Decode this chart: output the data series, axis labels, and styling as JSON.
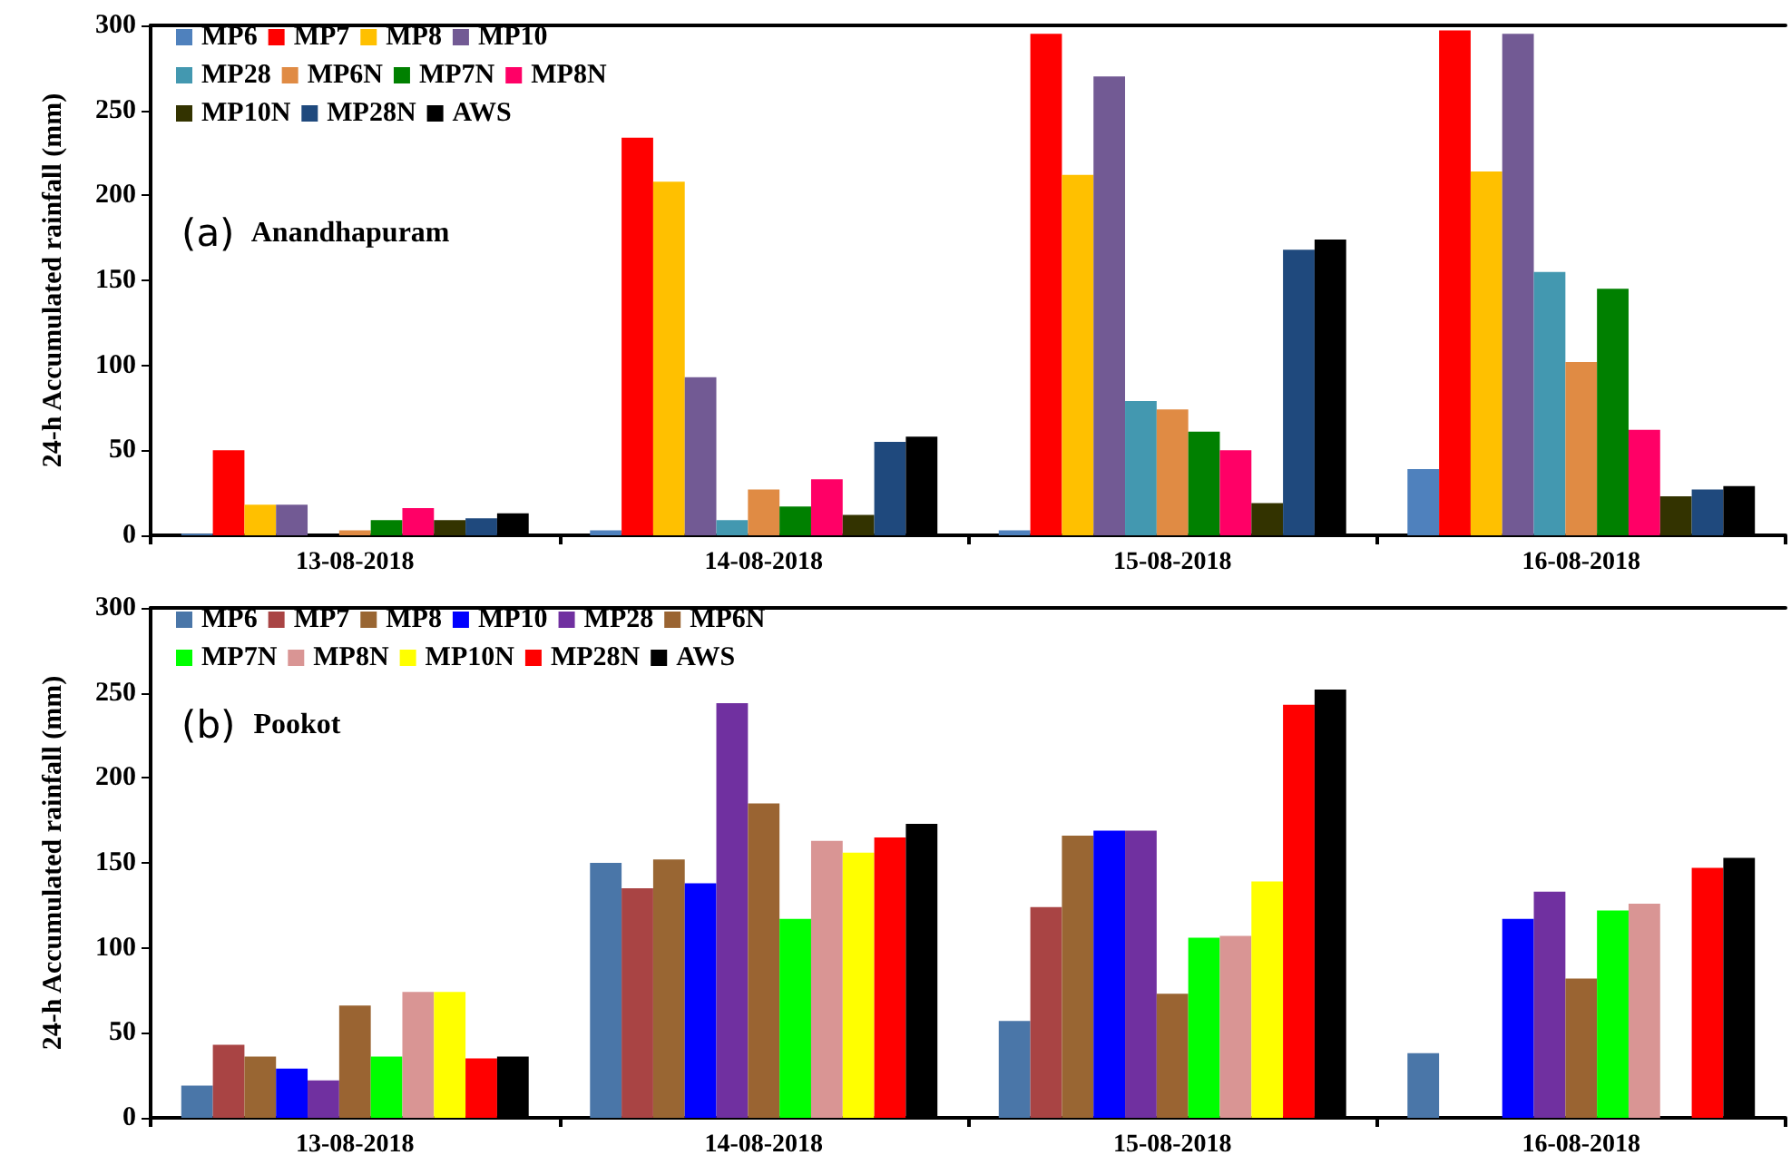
{
  "chart_data": [
    {
      "type": "bar",
      "categories": [
        "13-08-2018",
        "14-08-2018",
        "15-08-2018",
        "16-08-2018"
      ],
      "ylabel": "24-h Accumulated rainfall (mm)",
      "annotations": [
        "(a) Anandhapuram"
      ],
      "ylim": [
        0,
        300
      ],
      "yticks": [
        0,
        50,
        100,
        150,
        200,
        250,
        300
      ],
      "grid": false,
      "legend": "top left",
      "series": [
        {
          "name": "MP6",
          "color": "#4f81bd",
          "values": [
            1,
            3,
            3,
            39
          ]
        },
        {
          "name": "MP7",
          "color": "#ff0000",
          "values": [
            50,
            234,
            295,
            297
          ]
        },
        {
          "name": "MP8",
          "color": "#ffc000",
          "values": [
            18,
            208,
            212,
            214
          ]
        },
        {
          "name": "MP10",
          "color": "#725a94",
          "values": [
            18,
            93,
            270,
            295
          ]
        },
        {
          "name": "MP28",
          "color": "#4398b0",
          "values": [
            0,
            9,
            79,
            155
          ]
        },
        {
          "name": "MP6N",
          "color": "#e08b44",
          "values": [
            3,
            27,
            74,
            102
          ]
        },
        {
          "name": "MP7N",
          "color": "#008000",
          "values": [
            9,
            17,
            61,
            145
          ]
        },
        {
          "name": "MP8N",
          "color": "#ff0066",
          "values": [
            16,
            33,
            50,
            62
          ]
        },
        {
          "name": "MP10N",
          "color": "#333300",
          "values": [
            9,
            12,
            19,
            23
          ]
        },
        {
          "name": "MP28N",
          "color": "#1f497d",
          "values": [
            10,
            55,
            168,
            27
          ]
        },
        {
          "name": "AWS",
          "color": "#000000",
          "values": [
            13,
            58,
            174,
            29
          ]
        }
      ]
    },
    {
      "type": "bar",
      "categories": [
        "13-08-2018",
        "14-08-2018",
        "15-08-2018",
        "16-08-2018"
      ],
      "ylabel": "24-h Accumulated rainfall (mm)",
      "annotations": [
        "(b) Pookot"
      ],
      "ylim": [
        0,
        300
      ],
      "yticks": [
        0,
        50,
        100,
        150,
        200,
        250,
        300
      ],
      "grid": false,
      "legend": "top left",
      "series": [
        {
          "name": "MP6",
          "color": "#4a76a8",
          "values": [
            19,
            150,
            57,
            38
          ]
        },
        {
          "name": "MP7",
          "color": "#a94444",
          "values": [
            43,
            135,
            124,
            null
          ]
        },
        {
          "name": "MP8",
          "color": "#996633",
          "values": [
            36,
            152,
            166,
            null
          ]
        },
        {
          "name": "MP10",
          "color": "#0000ff",
          "values": [
            29,
            138,
            169,
            117
          ]
        },
        {
          "name": "MP28",
          "color": "#7030a0",
          "values": [
            22,
            244,
            169,
            133
          ]
        },
        {
          "name": "MP6N",
          "color": "#9a6432",
          "values": [
            66,
            185,
            73,
            82
          ]
        },
        {
          "name": "MP7N",
          "color": "#00ff00",
          "values": [
            36,
            117,
            106,
            122
          ]
        },
        {
          "name": "MP8N",
          "color": "#d99594",
          "values": [
            74,
            163,
            107,
            126
          ]
        },
        {
          "name": "MP10N",
          "color": "#ffff00",
          "values": [
            74,
            156,
            139,
            null
          ]
        },
        {
          "name": "MP28N",
          "color": "#ff0000",
          "values": [
            35,
            165,
            243,
            147
          ]
        },
        {
          "name": "AWS",
          "color": "#000000",
          "values": [
            36,
            173,
            252,
            153
          ]
        }
      ]
    }
  ]
}
